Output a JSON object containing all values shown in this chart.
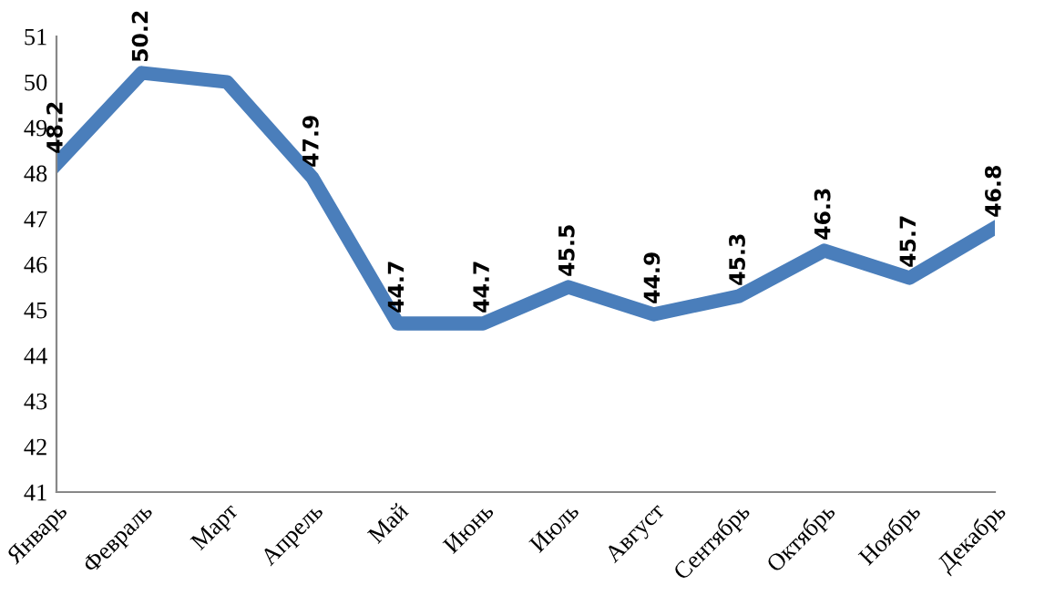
{
  "chart_data": {
    "type": "line",
    "categories": [
      "Январь",
      "Февраль",
      "Март",
      "Апрель",
      "Май",
      "Июнь",
      "Июль",
      "Август",
      "Сентябрь",
      "Октябрь",
      "Ноябрь",
      "Декабрь"
    ],
    "series": [
      {
        "color": "#4a7ebb",
        "values": [
          48.2,
          50.2,
          50.0,
          47.9,
          44.7,
          44.7,
          45.5,
          44.9,
          45.3,
          46.3,
          45.7,
          46.8
        ],
        "value_labels": [
          "48.2",
          "50.2",
          null,
          "47.9",
          "44.7",
          "44.7",
          "45.5",
          "44.9",
          "45.3",
          "46.3",
          "45.7",
          "46.8"
        ]
      }
    ],
    "ylim": [
      41,
      51
    ],
    "yticks": [
      41,
      42,
      43,
      44,
      45,
      46,
      47,
      48,
      49,
      50,
      51
    ],
    "grid": false,
    "legend": false,
    "marker": "none",
    "line_style": "solid"
  }
}
